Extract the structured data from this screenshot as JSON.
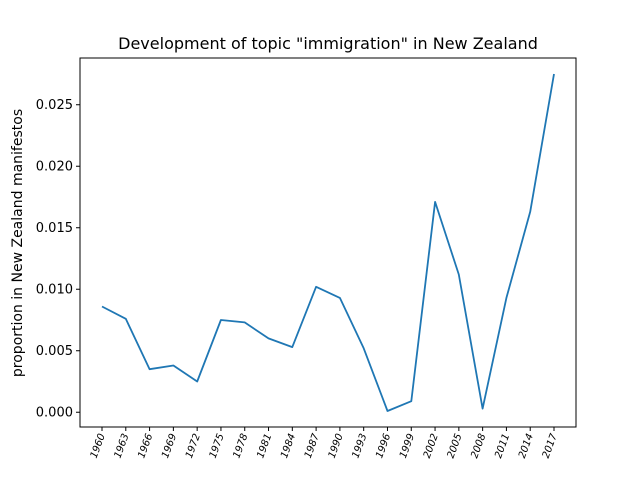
{
  "chart_data": {
    "type": "line",
    "title": "Development of topic \"immigration\" in New Zealand",
    "xlabel": "",
    "ylabel": "proportion in New Zealand manifestos",
    "categories": [
      "1960",
      "1963",
      "1966",
      "1969",
      "1972",
      "1975",
      "1978",
      "1981",
      "1984",
      "1987",
      "1990",
      "1993",
      "1996",
      "1999",
      "2002",
      "2005",
      "2008",
      "2011",
      "2014",
      "2017"
    ],
    "series": [
      {
        "values": [
          0.0086,
          0.0076,
          0.0035,
          0.0038,
          0.0025,
          0.0075,
          0.0073,
          0.006,
          0.0053,
          0.0102,
          0.0093,
          0.0052,
          0.0001,
          0.0009,
          0.0171,
          0.0112,
          0.0003,
          0.0093,
          0.0163,
          0.0275
        ],
        "color": "#1f77b4"
      }
    ],
    "ylim": [
      -0.0012,
      0.0288
    ],
    "yticks": [
      0.0,
      0.005,
      0.01,
      0.015,
      0.02,
      0.025
    ],
    "ytick_labels": [
      "0.000",
      "0.005",
      "0.010",
      "0.015",
      "0.020",
      "0.025"
    ],
    "grid": false,
    "legend": "none"
  }
}
